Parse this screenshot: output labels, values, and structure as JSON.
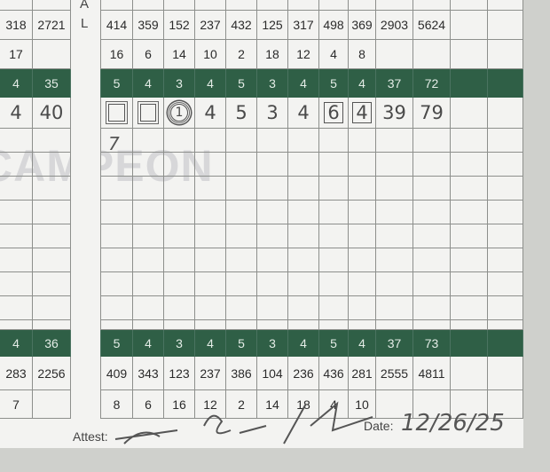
{
  "watermark": "CAMPEON",
  "label_column": {
    "a": "A",
    "l": "L"
  },
  "colors": {
    "par_band": "#2f5f46",
    "card": "#f3f3f1",
    "grid": "#8d8f8c"
  },
  "front": {
    "yardage": {
      "left": [
        "318",
        "2721"
      ],
      "holes": [
        "414",
        "359",
        "152",
        "237",
        "432",
        "125",
        "317",
        "498",
        "369"
      ],
      "out": "2903",
      "total": "5624"
    },
    "handicap": {
      "left": [
        "17",
        ""
      ],
      "holes": [
        "16",
        "6",
        "14",
        "10",
        "2",
        "18",
        "12",
        "4",
        "8"
      ],
      "out": "",
      "total": ""
    },
    "par": {
      "left": [
        "4",
        "35"
      ],
      "holes": [
        "5",
        "4",
        "3",
        "4",
        "5",
        "3",
        "4",
        "5",
        "4"
      ],
      "out": "37",
      "total": "72"
    },
    "score": {
      "left": [
        "4",
        "40"
      ],
      "holes": [
        "",
        "",
        "1",
        "4",
        "5",
        "3",
        "4",
        "6",
        "4"
      ],
      "marks": [
        "double-box",
        "double-box",
        "double-circle",
        "",
        "",
        "",
        "",
        "box",
        "box-light"
      ],
      "out": "39",
      "total": "79",
      "note_hole1": "7"
    }
  },
  "back": {
    "par": {
      "left": [
        "4",
        "36"
      ],
      "holes": [
        "5",
        "4",
        "3",
        "4",
        "5",
        "3",
        "4",
        "5",
        "4"
      ],
      "out": "37",
      "total": "73"
    },
    "yardage": {
      "left": [
        "283",
        "2256"
      ],
      "holes": [
        "409",
        "343",
        "123",
        "237",
        "386",
        "104",
        "236",
        "436",
        "281"
      ],
      "out": "2555",
      "total": "4811"
    },
    "handicap": {
      "left": [
        "7",
        ""
      ],
      "holes": [
        "8",
        "6",
        "16",
        "12",
        "2",
        "14",
        "18",
        "4",
        "10"
      ],
      "out": "",
      "total": ""
    }
  },
  "footer": {
    "attest_label": "Attest:",
    "date_label": "Date:",
    "date_value": "12/26/25"
  }
}
